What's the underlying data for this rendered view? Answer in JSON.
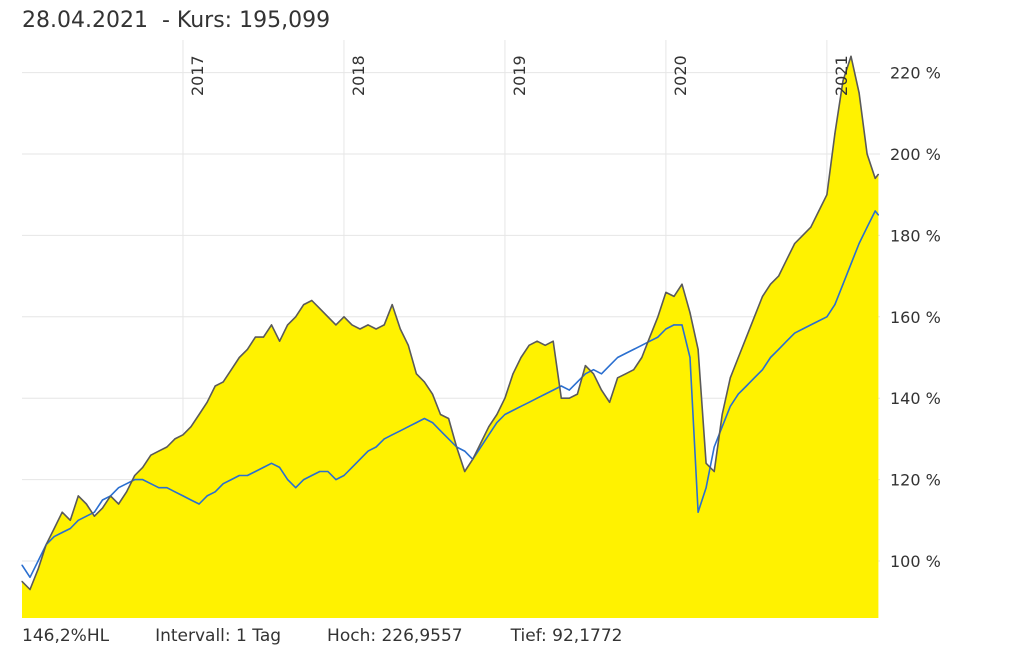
{
  "header": {
    "date": "28.04.2021",
    "kurs_label": "- Kurs:",
    "kurs_value": "195,099"
  },
  "footer": {
    "hl": "146,2%HL",
    "intervall": "Intervall: 1 Tag",
    "hoch": "Hoch: 226,9557",
    "tief": "Tief: 92,1772"
  },
  "chart_data": {
    "type": "area",
    "ylim": [
      86,
      228
    ],
    "xlim": [
      2016.0,
      2021.33
    ],
    "grid": true,
    "y_ticks": [
      {
        "value": 100,
        "label": "100 %"
      },
      {
        "value": 120,
        "label": "120 %"
      },
      {
        "value": 140,
        "label": "140 %"
      },
      {
        "value": 160,
        "label": "160 %"
      },
      {
        "value": 180,
        "label": "180 %"
      },
      {
        "value": 200,
        "label": "200 %"
      },
      {
        "value": 220,
        "label": "220 %"
      }
    ],
    "x_ticks": [
      {
        "value": 2017.0,
        "label": "2017"
      },
      {
        "value": 2018.0,
        "label": "2018"
      },
      {
        "value": 2019.0,
        "label": "2019"
      },
      {
        "value": 2020.0,
        "label": "2020"
      },
      {
        "value": 2021.0,
        "label": "2021"
      }
    ],
    "colors": {
      "fill": "#fff200",
      "line_main": "#5a5a5a",
      "line_compare": "#2a6fd0",
      "grid": "#e6e6e6"
    },
    "series": [
      {
        "x": [
          2016.0,
          2016.05,
          2016.1,
          2016.15,
          2016.2,
          2016.25,
          2016.3,
          2016.35,
          2016.4,
          2016.45,
          2016.5,
          2016.55,
          2016.6,
          2016.65,
          2016.7,
          2016.75,
          2016.8,
          2016.85,
          2016.9,
          2016.95,
          2017.0,
          2017.05,
          2017.1,
          2017.15,
          2017.2,
          2017.25,
          2017.3,
          2017.35,
          2017.4,
          2017.45,
          2017.5,
          2017.55,
          2017.6,
          2017.65,
          2017.7,
          2017.75,
          2017.8,
          2017.85,
          2017.9,
          2017.95,
          2018.0,
          2018.05,
          2018.1,
          2018.15,
          2018.2,
          2018.25,
          2018.3,
          2018.35,
          2018.4,
          2018.45,
          2018.5,
          2018.55,
          2018.6,
          2018.65,
          2018.7,
          2018.75,
          2018.8,
          2018.85,
          2018.9,
          2018.95,
          2019.0,
          2019.05,
          2019.1,
          2019.15,
          2019.2,
          2019.25,
          2019.3,
          2019.35,
          2019.4,
          2019.45,
          2019.5,
          2019.55,
          2019.6,
          2019.65,
          2019.7,
          2019.75,
          2019.8,
          2019.85,
          2019.9,
          2019.95,
          2020.0,
          2020.05,
          2020.1,
          2020.15,
          2020.2,
          2020.25,
          2020.3,
          2020.35,
          2020.4,
          2020.45,
          2020.5,
          2020.55,
          2020.6,
          2020.65,
          2020.7,
          2020.75,
          2020.8,
          2020.85,
          2020.9,
          2020.95,
          2021.0,
          2021.05,
          2021.1,
          2021.15,
          2021.2,
          2021.25,
          2021.3,
          2021.32
        ],
        "y": [
          95,
          93,
          98,
          104,
          108,
          112,
          110,
          116,
          114,
          111,
          113,
          116,
          114,
          117,
          121,
          123,
          126,
          127,
          128,
          130,
          131,
          133,
          136,
          139,
          143,
          144,
          147,
          150,
          152,
          155,
          155,
          158,
          154,
          158,
          160,
          163,
          164,
          162,
          160,
          158,
          160,
          158,
          157,
          158,
          157,
          158,
          163,
          157,
          153,
          146,
          144,
          141,
          136,
          135,
          128,
          122,
          125,
          129,
          133,
          136,
          140,
          146,
          150,
          153,
          154,
          153,
          154,
          140,
          140,
          141,
          148,
          146,
          142,
          139,
          145,
          146,
          147,
          150,
          155,
          160,
          166,
          165,
          168,
          161,
          152,
          124,
          122,
          136,
          145,
          150,
          155,
          160,
          165,
          168,
          170,
          174,
          178,
          180,
          182,
          186,
          190,
          205,
          218,
          224,
          215,
          200,
          194,
          195
        ]
      },
      {
        "x": [
          2016.0,
          2016.05,
          2016.1,
          2016.15,
          2016.2,
          2016.25,
          2016.3,
          2016.35,
          2016.4,
          2016.45,
          2016.5,
          2016.55,
          2016.6,
          2016.65,
          2016.7,
          2016.75,
          2016.8,
          2016.85,
          2016.9,
          2016.95,
          2017.0,
          2017.05,
          2017.1,
          2017.15,
          2017.2,
          2017.25,
          2017.3,
          2017.35,
          2017.4,
          2017.45,
          2017.5,
          2017.55,
          2017.6,
          2017.65,
          2017.7,
          2017.75,
          2017.8,
          2017.85,
          2017.9,
          2017.95,
          2018.0,
          2018.05,
          2018.1,
          2018.15,
          2018.2,
          2018.25,
          2018.3,
          2018.35,
          2018.4,
          2018.45,
          2018.5,
          2018.55,
          2018.6,
          2018.65,
          2018.7,
          2018.75,
          2018.8,
          2018.85,
          2018.9,
          2018.95,
          2019.0,
          2019.05,
          2019.1,
          2019.15,
          2019.2,
          2019.25,
          2019.3,
          2019.35,
          2019.4,
          2019.45,
          2019.5,
          2019.55,
          2019.6,
          2019.65,
          2019.7,
          2019.75,
          2019.8,
          2019.85,
          2019.9,
          2019.95,
          2020.0,
          2020.05,
          2020.1,
          2020.15,
          2020.2,
          2020.25,
          2020.3,
          2020.35,
          2020.4,
          2020.45,
          2020.5,
          2020.55,
          2020.6,
          2020.65,
          2020.7,
          2020.75,
          2020.8,
          2020.85,
          2020.9,
          2020.95,
          2021.0,
          2021.05,
          2021.1,
          2021.15,
          2021.2,
          2021.25,
          2021.3,
          2021.32
        ],
        "y": [
          99,
          96,
          100,
          104,
          106,
          107,
          108,
          110,
          111,
          112,
          115,
          116,
          118,
          119,
          120,
          120,
          119,
          118,
          118,
          117,
          116,
          115,
          114,
          116,
          117,
          119,
          120,
          121,
          121,
          122,
          123,
          124,
          123,
          120,
          118,
          120,
          121,
          122,
          122,
          120,
          121,
          123,
          125,
          127,
          128,
          130,
          131,
          132,
          133,
          134,
          135,
          134,
          132,
          130,
          128,
          127,
          125,
          128,
          131,
          134,
          136,
          137,
          138,
          139,
          140,
          141,
          142,
          143,
          142,
          144,
          146,
          147,
          146,
          148,
          150,
          151,
          152,
          153,
          154,
          155,
          157,
          158,
          158,
          150,
          112,
          118,
          128,
          133,
          138,
          141,
          143,
          145,
          147,
          150,
          152,
          154,
          156,
          157,
          158,
          159,
          160,
          163,
          168,
          173,
          178,
          182,
          186,
          185
        ]
      }
    ]
  }
}
